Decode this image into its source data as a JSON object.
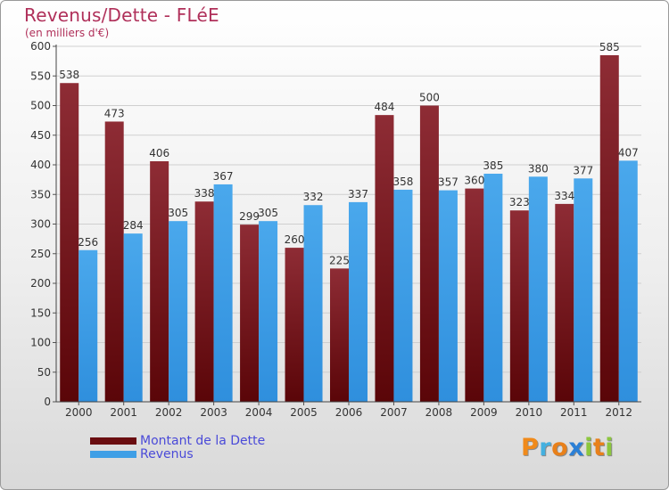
{
  "title": "Revenus/Dette - FLéE",
  "subtitle": "(en milliers d'€)",
  "chart_data": {
    "type": "bar",
    "title": "Revenus/Dette - FLéE",
    "subtitle": "(en milliers d'€)",
    "categories": [
      "2000",
      "2001",
      "2002",
      "2003",
      "2004",
      "2005",
      "2006",
      "2007",
      "2008",
      "2009",
      "2010",
      "2011",
      "2012"
    ],
    "series": [
      {
        "name": "Montant de la Dette",
        "color": "#7a1a1f",
        "values": [
          538,
          473,
          406,
          338,
          299,
          260,
          225,
          484,
          500,
          360,
          323,
          334,
          585
        ]
      },
      {
        "name": "Revenus",
        "color": "#3f9fe6",
        "values": [
          256,
          284,
          305,
          367,
          305,
          332,
          337,
          358,
          357,
          385,
          380,
          377,
          407
        ]
      }
    ],
    "yticks": [
      0,
      50,
      100,
      150,
      200,
      250,
      300,
      350,
      400,
      450,
      500,
      550,
      600
    ],
    "ylim": [
      0,
      600
    ],
    "grid": true,
    "legend": "bottom-left"
  },
  "legend": {
    "items": [
      {
        "label": "Montant de la Dette",
        "color": "#6a0d10"
      },
      {
        "label": "Revenus",
        "color": "#3f9fe6"
      }
    ]
  },
  "logo": {
    "letters": [
      {
        "ch": "P",
        "color": "#f08a1a"
      },
      {
        "ch": "r",
        "color": "#43b0e0"
      },
      {
        "ch": "o",
        "color": "#e8801a"
      },
      {
        "ch": "x",
        "color": "#2a7fd6"
      },
      {
        "ch": "i",
        "color": "#8cc63e"
      },
      {
        "ch": "t",
        "color": "#e8801a"
      },
      {
        "ch": "i",
        "color": "#8cc63e"
      }
    ]
  }
}
